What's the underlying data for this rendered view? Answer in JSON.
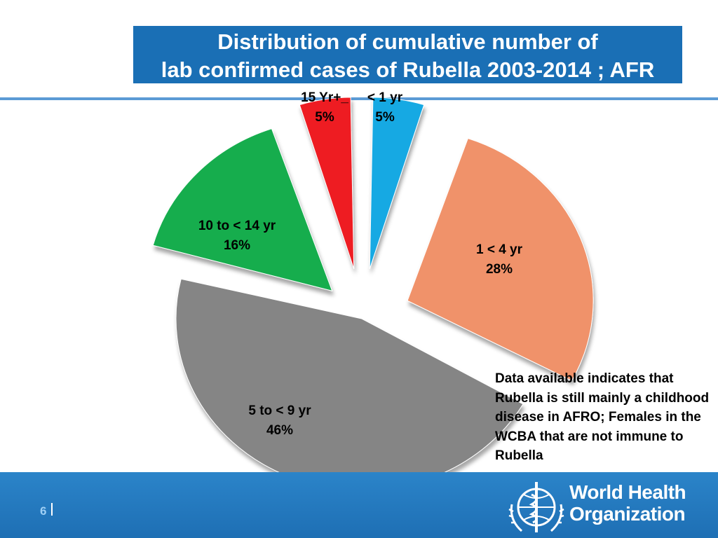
{
  "title": {
    "line1": "Distribution of cumulative number of",
    "line2": "lab confirmed cases of Rubella 2003-2014 ; AFR"
  },
  "chart_data": {
    "type": "pie",
    "title": "Distribution of cumulative number of lab confirmed cases of Rubella 2003-2014 ; AFR",
    "slices": [
      {
        "label": "< 1 yr",
        "value": 5,
        "value_label": "5%",
        "color": "#19a9e3"
      },
      {
        "label": "1 < 4 yr",
        "value": 28,
        "value_label": "28%",
        "color": "#f0926a"
      },
      {
        "label": "5 to < 9 yr",
        "value": 46,
        "value_label": "46%",
        "color": "#858585"
      },
      {
        "label": "10 to < 14 yr",
        "value": 16,
        "value_label": "16%",
        "color": "#12ad4e"
      },
      {
        "label": "15 Yr+_",
        "value": 5,
        "value_label": "5%",
        "color": "#ee1c24"
      }
    ],
    "legend": "none",
    "exploded": true
  },
  "note": "Data available indicates that Rubella is still mainly a childhood disease in AFRO; Females in the WCBA that are not immune to Rubella",
  "footer": {
    "page_number": "6",
    "org_line1": "World Health",
    "org_line2": "Organization"
  },
  "colors": {
    "title_bg": "#1a6fb5",
    "footer_bg": "#2478bf",
    "accent_line": "#5b9bd5"
  }
}
